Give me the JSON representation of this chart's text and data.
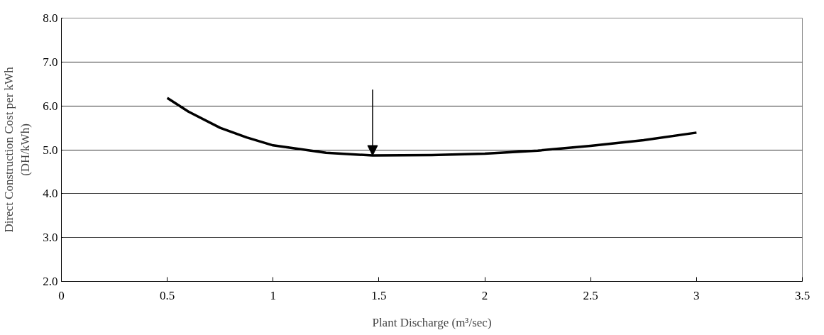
{
  "chart_data": {
    "type": "line",
    "xlabel": "Plant Discharge (m³/sec)",
    "ylabel": "Direct Construction Cost per kWh\n(DH/kWh)",
    "x": [
      0.5,
      0.6,
      0.75,
      0.875,
      1.0,
      1.25,
      1.47,
      1.75,
      2.0,
      2.25,
      2.5,
      2.75,
      3.0
    ],
    "series": [
      {
        "color": "#000000",
        "values": [
          6.18,
          5.87,
          5.5,
          5.28,
          5.1,
          4.93,
          4.87,
          4.88,
          4.91,
          4.98,
          5.09,
          5.22,
          5.39
        ]
      }
    ],
    "xlim": [
      0,
      3.5
    ],
    "xticks": [
      0,
      0.5,
      1,
      1.5,
      2,
      2.5,
      3,
      3.5
    ],
    "ylim": [
      2.0,
      8.0
    ],
    "yticks": [
      {
        "value": 2,
        "label": "2.0"
      },
      {
        "value": 3,
        "label": "3.0"
      },
      {
        "value": 4,
        "label": "4.0"
      },
      {
        "value": 5,
        "label": "5.0"
      },
      {
        "value": 6,
        "label": "6.0"
      },
      {
        "value": 7,
        "label": "7.0"
      },
      {
        "value": 8,
        "label": "8.0"
      }
    ],
    "grid": "y",
    "marker": "none",
    "line_style": "solid"
  }
}
